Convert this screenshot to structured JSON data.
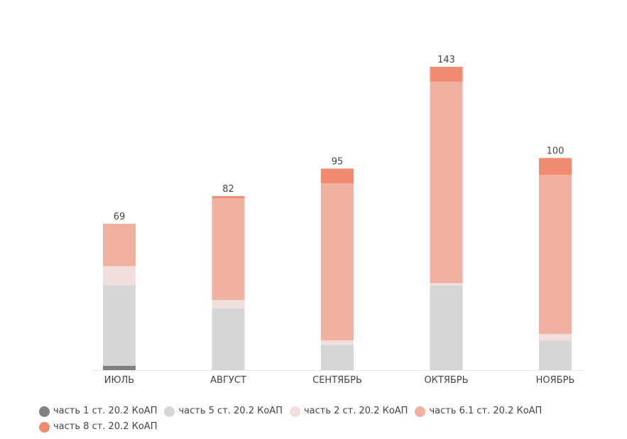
{
  "chart_data": {
    "type": "bar",
    "stacked": true,
    "categories": [
      "ИЮЛЬ",
      "АВГУСТ",
      "СЕНТЯБРЬ",
      "ОКТЯБРЬ",
      "НОЯБРЬ"
    ],
    "totals": [
      69,
      82,
      95,
      143,
      100
    ],
    "series": [
      {
        "name": "часть 1 ст. 20.2 КоАП",
        "color": "#808080",
        "values": [
          2,
          0,
          0,
          0,
          0
        ]
      },
      {
        "name": "часть 5 ст. 20.2 КоАП",
        "color": "#d6d6d6",
        "values": [
          38,
          29,
          12,
          40,
          14
        ]
      },
      {
        "name": "часть 2 ст. 20.2 КоАП",
        "color": "#f0dfdc",
        "values": [
          9,
          4,
          2,
          1,
          3
        ]
      },
      {
        "name": "часть 6.1 ст. 20.2 КоАП",
        "color": "#f0b1a0",
        "values": [
          20,
          48,
          74,
          95,
          75
        ]
      },
      {
        "name": "часть 8 ст. 20.2 КоАП",
        "color": "#f08a70",
        "values": [
          0,
          1,
          7,
          7,
          8
        ]
      }
    ],
    "ylim": [
      0,
      143
    ],
    "grid": false,
    "legend_position": "bottom-left",
    "title": "",
    "xlabel": "",
    "ylabel": ""
  }
}
